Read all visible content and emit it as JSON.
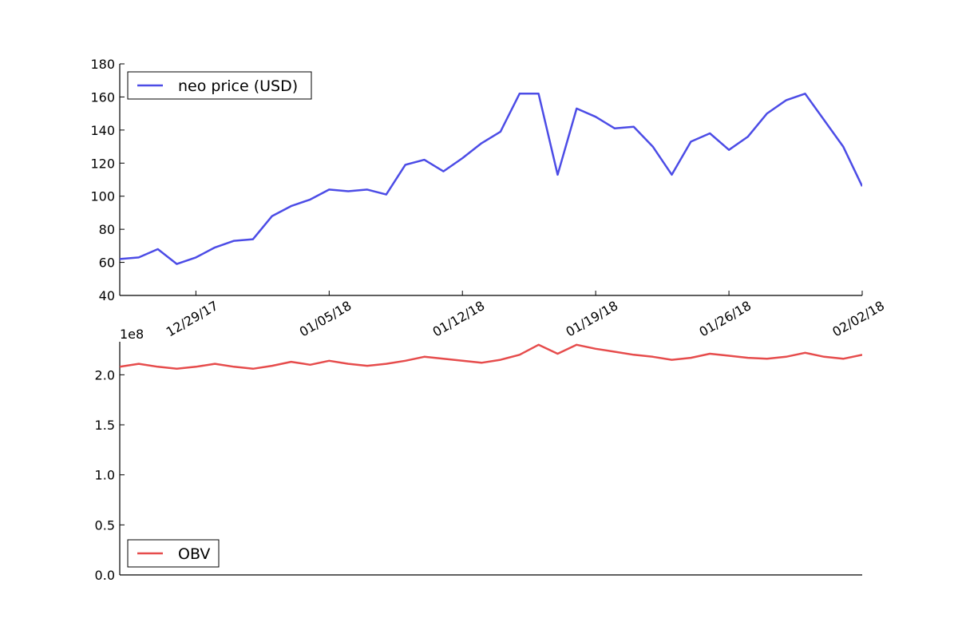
{
  "chart_data": [
    {
      "type": "line",
      "panel": "top",
      "x": [
        "12/25/17",
        "12/26/17",
        "12/27/17",
        "12/28/17",
        "12/29/17",
        "12/30/17",
        "12/31/17",
        "01/01/18",
        "01/02/18",
        "01/03/18",
        "01/04/18",
        "01/05/18",
        "01/06/18",
        "01/07/18",
        "01/08/18",
        "01/09/18",
        "01/10/18",
        "01/11/18",
        "01/12/18",
        "01/13/18",
        "01/14/18",
        "01/15/18",
        "01/16/18",
        "01/17/18",
        "01/18/18",
        "01/19/18",
        "01/20/18",
        "01/21/18",
        "01/22/18",
        "01/23/18",
        "01/24/18",
        "01/25/18",
        "01/26/18",
        "01/27/18",
        "01/28/18",
        "01/29/18",
        "01/30/18",
        "01/31/18",
        "02/01/18",
        "02/02/18"
      ],
      "series": [
        {
          "name": "neo price (USD)",
          "color": "#4c4ce6",
          "values": [
            62,
            63,
            68,
            59,
            63,
            69,
            73,
            74,
            88,
            94,
            98,
            104,
            103,
            104,
            101,
            119,
            122,
            115,
            123,
            132,
            139,
            162,
            162,
            113,
            153,
            148,
            141,
            142,
            130,
            113,
            133,
            138,
            128,
            136,
            150,
            158,
            162,
            146,
            130,
            106
          ]
        }
      ],
      "xlim": [
        "12/25/17",
        "02/02/18"
      ],
      "ylim": [
        40,
        180
      ],
      "yticks": [
        40,
        60,
        80,
        100,
        120,
        140,
        160,
        180
      ],
      "xticks": [
        "12/29/17",
        "01/05/18",
        "01/12/18",
        "01/19/18",
        "01/26/18",
        "02/02/18"
      ],
      "legend": "top-left",
      "grid": false
    },
    {
      "type": "line",
      "panel": "bottom",
      "x": [
        "12/25/17",
        "12/26/17",
        "12/27/17",
        "12/28/17",
        "12/29/17",
        "12/30/17",
        "12/31/17",
        "01/01/18",
        "01/02/18",
        "01/03/18",
        "01/04/18",
        "01/05/18",
        "01/06/18",
        "01/07/18",
        "01/08/18",
        "01/09/18",
        "01/10/18",
        "01/11/18",
        "01/12/18",
        "01/13/18",
        "01/14/18",
        "01/15/18",
        "01/16/18",
        "01/17/18",
        "01/18/18",
        "01/19/18",
        "01/20/18",
        "01/21/18",
        "01/22/18",
        "01/23/18",
        "01/24/18",
        "01/25/18",
        "01/26/18",
        "01/27/18",
        "01/28/18",
        "01/29/18",
        "01/30/18",
        "01/31/18",
        "02/01/18",
        "02/02/18"
      ],
      "series": [
        {
          "name": "OBV",
          "color": "#e64c4c",
          "values": [
            2.08,
            2.11,
            2.08,
            2.06,
            2.08,
            2.11,
            2.08,
            2.06,
            2.09,
            2.13,
            2.1,
            2.14,
            2.11,
            2.09,
            2.11,
            2.14,
            2.18,
            2.16,
            2.14,
            2.12,
            2.15,
            2.2,
            2.3,
            2.21,
            2.3,
            2.26,
            2.23,
            2.2,
            2.18,
            2.15,
            2.17,
            2.21,
            2.19,
            2.17,
            2.16,
            2.18,
            2.22,
            2.18,
            2.16,
            2.2
          ]
        }
      ],
      "y_scale_label": "1e8",
      "xlim": [
        "12/25/17",
        "02/02/18"
      ],
      "ylim": [
        0,
        2.33
      ],
      "yticks": [
        "0.0",
        "0.5",
        "1.0",
        "1.5",
        "2.0"
      ],
      "legend": "bottom-left",
      "grid": false
    }
  ]
}
